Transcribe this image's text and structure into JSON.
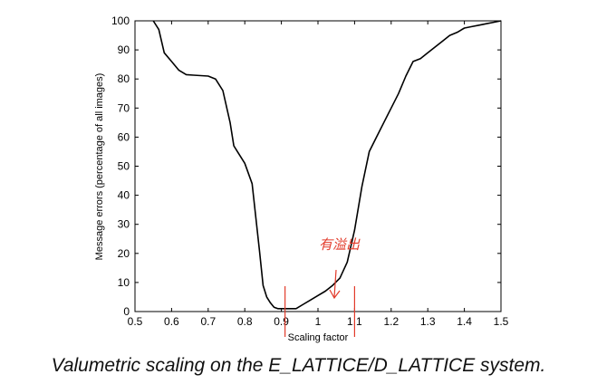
{
  "caption": "Valumetric scaling on the E_LATTICE/D_LATTICE system.",
  "chart_data": {
    "type": "line",
    "title": "",
    "xlabel": "Scaling factor",
    "ylabel": "Message errors (percentage of all images)",
    "xlim": [
      0.5,
      1.5
    ],
    "ylim": [
      0,
      100
    ],
    "xticks": [
      "0.5",
      "0.6",
      "0.7",
      "0.8",
      "0.9",
      "1",
      "1.1",
      "1.2",
      "1.3",
      "1.4",
      "1.5"
    ],
    "yticks": [
      "0",
      "10",
      "20",
      "30",
      "40",
      "50",
      "60",
      "70",
      "80",
      "90",
      "100"
    ],
    "grid": false,
    "series": [
      {
        "color": "#000000",
        "x": [
          0.55,
          0.565,
          0.58,
          0.6,
          0.62,
          0.64,
          0.66,
          0.7,
          0.72,
          0.74,
          0.76,
          0.77,
          0.78,
          0.8,
          0.82,
          0.84,
          0.85,
          0.86,
          0.87,
          0.88,
          0.89,
          0.9,
          0.92,
          0.94,
          0.96,
          0.98,
          1.0,
          1.02,
          1.04,
          1.06,
          1.08,
          1.1,
          1.12,
          1.14,
          1.16,
          1.18,
          1.2,
          1.22,
          1.24,
          1.26,
          1.28,
          1.3,
          1.32,
          1.34,
          1.36,
          1.38,
          1.4,
          1.42,
          1.44,
          1.46,
          1.48,
          1.5
        ],
        "y": [
          100,
          97,
          89,
          86,
          83,
          81.5,
          81.3,
          81,
          80,
          76,
          65,
          57,
          55,
          51,
          44,
          21,
          9,
          5,
          3,
          1.5,
          1,
          1,
          1,
          1,
          2.5,
          4,
          5.5,
          7,
          9,
          11.5,
          17,
          28,
          43,
          55,
          60,
          65,
          70,
          75,
          81,
          86,
          87,
          89,
          91,
          93,
          95,
          96,
          97.5,
          98,
          98.5,
          99,
          99.5,
          100
        ]
      }
    ],
    "annotations": [
      {
        "type": "handwritten-text",
        "text": "有溢出",
        "color": "#e23a2a"
      },
      {
        "type": "vertical-mark",
        "x": 0.91,
        "color": "#e23a2a"
      },
      {
        "type": "vertical-mark",
        "x": 1.1,
        "color": "#e23a2a"
      },
      {
        "type": "arrow",
        "color": "#e23a2a"
      }
    ]
  }
}
